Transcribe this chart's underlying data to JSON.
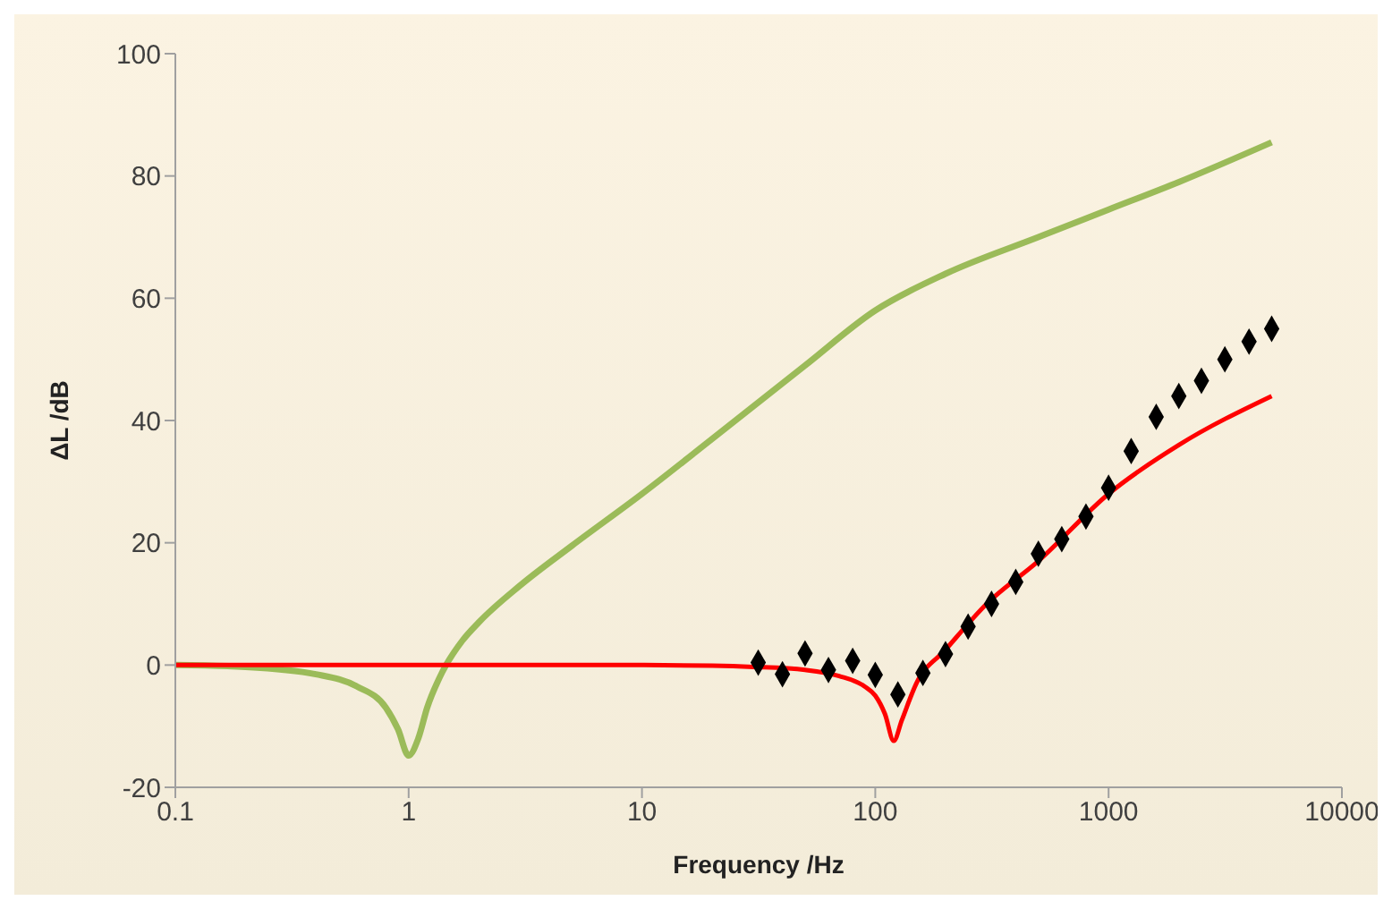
{
  "chart_data": {
    "type": "line",
    "xlabel": "Frequency /Hz",
    "ylabel": "ΔL /dB",
    "log": "x",
    "grid": false,
    "marker": "none",
    "xlim": [
      0.1,
      10000
    ],
    "xticks": [
      0.1,
      1,
      10,
      100,
      1000,
      10000
    ],
    "ylim": [
      -20,
      100
    ],
    "yticks": [
      -20,
      0,
      20,
      40,
      60,
      80,
      100
    ],
    "series": [
      {
        "color": "#9bbb59",
        "x": [
          0.1,
          0.2,
          0.4,
          0.6,
          0.8,
          0.9,
          1,
          1.1,
          1.2,
          1.4,
          1.7,
          2,
          3,
          5,
          10,
          20,
          50,
          100,
          200,
          500,
          1000,
          2000,
          5000
        ],
        "values": [
          0,
          -0.3,
          -1.5,
          -3.5,
          -7,
          -10.5,
          -14.8,
          -12,
          -7,
          -1,
          4,
          7,
          13,
          19.5,
          28,
          37,
          49,
          58,
          64,
          70,
          74.5,
          79,
          85.5
        ]
      },
      {
        "color": "#ff0000",
        "x": [
          0.1,
          1,
          10,
          20,
          30,
          50,
          70,
          90,
          100,
          110,
          120,
          130,
          150,
          200,
          300,
          500,
          1000,
          2000,
          5000
        ],
        "values": [
          0,
          0,
          0,
          -0.1,
          -0.3,
          -0.8,
          -1.8,
          -3.5,
          -5,
          -8,
          -12.4,
          -9,
          -3,
          2.5,
          10,
          17,
          28,
          36,
          44
        ]
      },
      {
        "type": "scatter",
        "color": "#000000",
        "marker": "diamond",
        "x": [
          31.5,
          40,
          50,
          63,
          80,
          100,
          125,
          160,
          200,
          250,
          315,
          400,
          500,
          630,
          800,
          1000,
          1250,
          1600,
          2000,
          2500,
          3150,
          4000,
          5000
        ],
        "values": [
          0.4,
          -1.5,
          1.9,
          -0.8,
          0.7,
          -1.6,
          -4.8,
          -1.3,
          1.8,
          6.3,
          10,
          13.6,
          18.2,
          20.6,
          24.3,
          29,
          35,
          40.6,
          44,
          46.5,
          50,
          52.9,
          55
        ]
      }
    ]
  }
}
